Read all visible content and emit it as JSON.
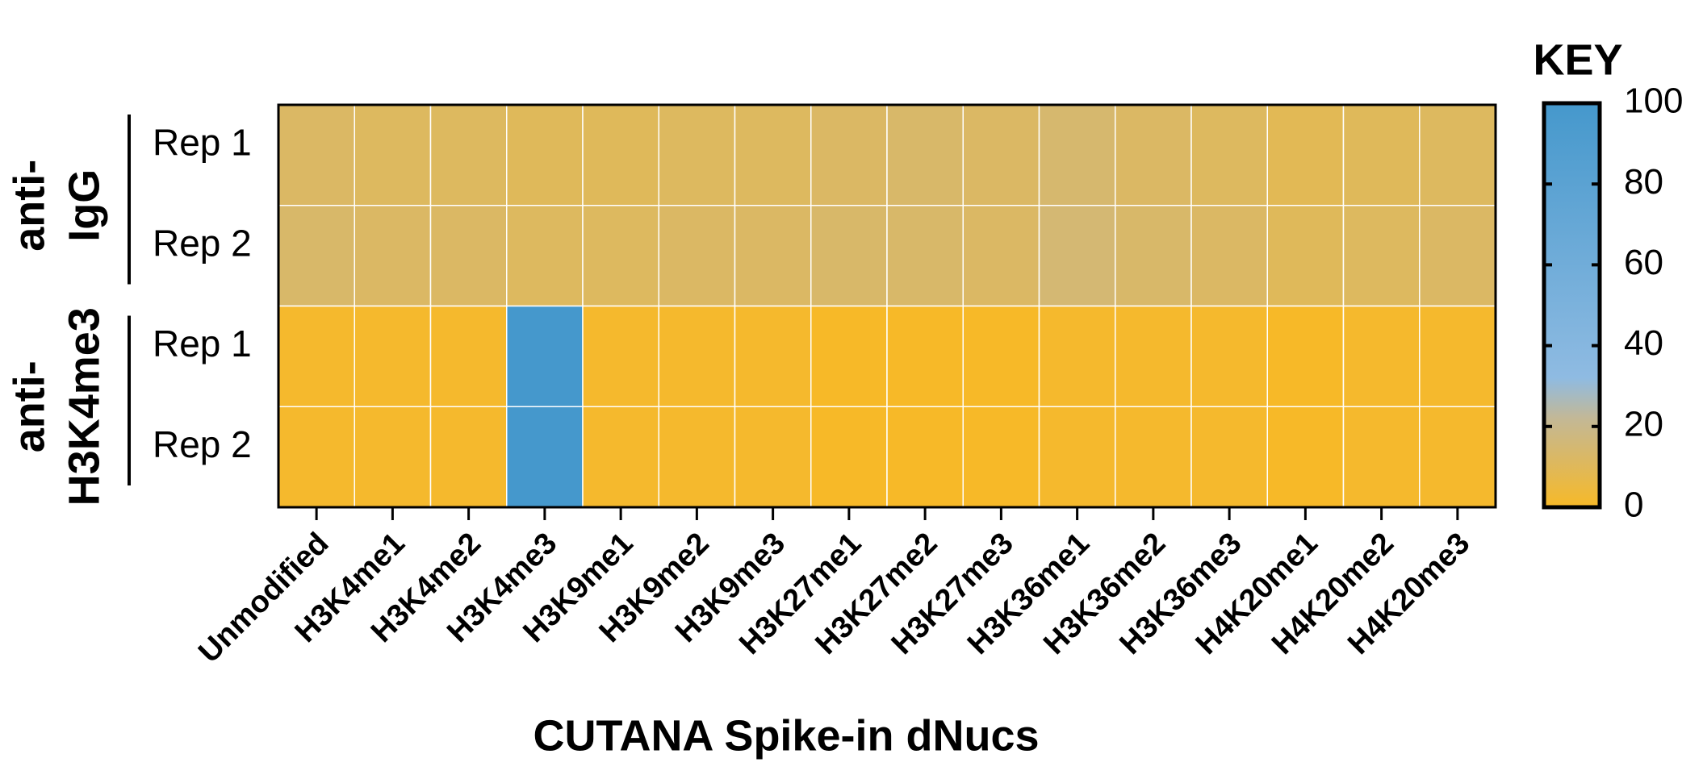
{
  "chart_data": {
    "type": "heatmap",
    "x_label": "CUTANA Spike-in dNucs",
    "categories": [
      "Unmodified",
      "H3K4me1",
      "H3K4me2",
      "H3K4me3",
      "H3K9me1",
      "H3K9me2",
      "H3K9me3",
      "H3K27me1",
      "H3K27me2",
      "H3K27me3",
      "H3K36me1",
      "H3K36me2",
      "H3K36me3",
      "H4K20me1",
      "H4K20me2",
      "H4K20me3"
    ],
    "row_groups": [
      {
        "label_lines": [
          "anti-",
          "IgG"
        ],
        "rows": [
          "Rep 1",
          "Rep 2"
        ]
      },
      {
        "label_lines": [
          "anti-",
          "H3K4me3"
        ],
        "rows": [
          "Rep 1",
          "Rep 2"
        ]
      }
    ],
    "values": [
      [
        12,
        11,
        11,
        10,
        10,
        11,
        11,
        12,
        13,
        12,
        14,
        12,
        11,
        9,
        10,
        11
      ],
      [
        13,
        12,
        12,
        11,
        11,
        12,
        12,
        13,
        13,
        12,
        15,
        13,
        12,
        10,
        11,
        12
      ],
      [
        1,
        1,
        1,
        100,
        1,
        1,
        1,
        0,
        0,
        0,
        1,
        1,
        1,
        0,
        1,
        1
      ],
      [
        1,
        1,
        1,
        100,
        1,
        1,
        1,
        0,
        0,
        0,
        1,
        1,
        1,
        0,
        1,
        1
      ]
    ],
    "colorbar": {
      "title": "KEY",
      "lim": [
        0,
        100
      ],
      "ticks": [
        0,
        20,
        40,
        60,
        80,
        100
      ],
      "colormap": [
        {
          "value": 0,
          "color": "#f7b928"
        },
        {
          "value": 22,
          "color": "#c3b896"
        },
        {
          "value": 32,
          "color": "#8fbbe2"
        },
        {
          "value": 100,
          "color": "#4598cc"
        }
      ]
    }
  }
}
